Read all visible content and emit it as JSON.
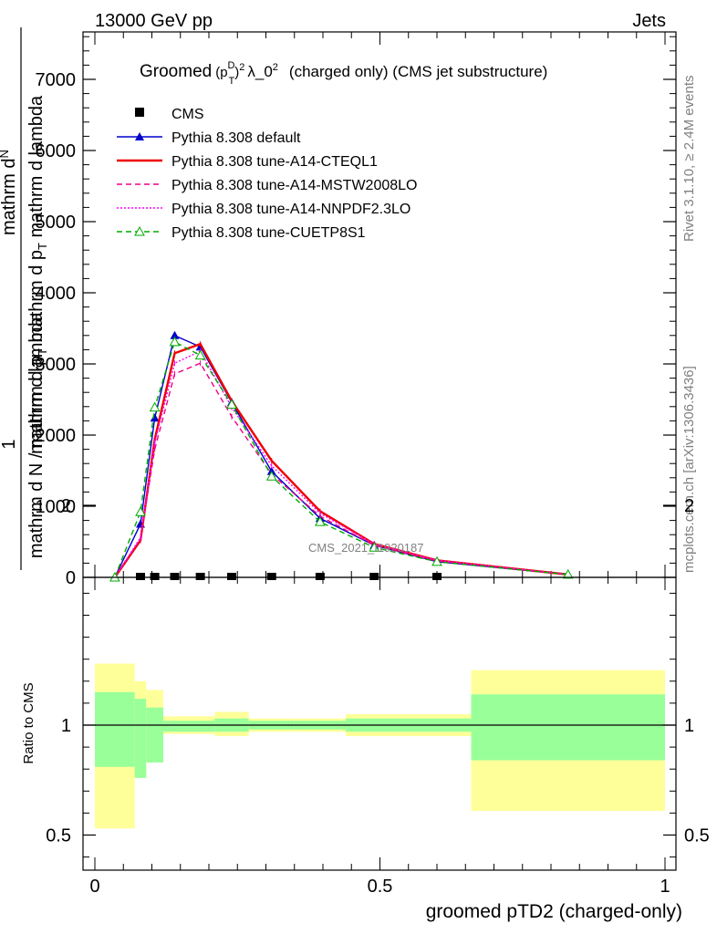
{
  "header": {
    "energy": "13000 GeV pp",
    "process": "Jets"
  },
  "side": {
    "rivet": "Rivet 3.1.10, ≥ 2.4M events",
    "mcplots": "mcplots.cern.ch [arXiv:1306.3436]"
  },
  "title": {
    "groomed": "Groomed",
    "p": "(p",
    "D": "D",
    "T": "T",
    "paren_sq": ")",
    "two": "2",
    "lambda": "λ_0",
    "two2": "2",
    "rest": "(charged only) (CMS jet substructure)"
  },
  "watermark": "CMS_2021_I1920187",
  "upper": {
    "ylabel_num_top": "mathrm d",
    "ylabel_N": "N",
    "ylabel_num_bot": "mathrm d p",
    "ylabel_num_bot2": "T",
    "ylabel_num_bot3": " mathrm d lambda",
    "ylabel_one": "1",
    "ylabel_den": "mathrm d N / mathrm d p",
    "ylabel_den_T": "T"
  },
  "ratio_label": "Ratio to CMS",
  "xlabel": "groomed pTD2 (charged-only)",
  "chart_data": [
    {
      "type": "line",
      "panel": "main",
      "xlim": [
        0,
        1
      ],
      "ylim": [
        0,
        7600
      ],
      "y_ticks": [
        0,
        1000,
        2000,
        3000,
        4000,
        5000,
        6000,
        7000
      ],
      "y_tick_labels": [
        "0",
        "1000",
        "2000",
        "3000",
        "4000",
        "5000",
        "6000",
        "7000"
      ],
      "x_ticks": [
        0,
        0.5,
        1
      ],
      "x_tick_labels": [
        "0",
        "0.5",
        "1"
      ],
      "data_points": {
        "name": "CMS",
        "x": [
          0.035,
          0.08,
          0.105,
          0.14,
          0.185,
          0.24,
          0.31,
          0.395,
          0.49,
          0.6,
          0.83
        ],
        "y": [
          0,
          0,
          0,
          0,
          0,
          0,
          0,
          0,
          0,
          0,
          0
        ]
      },
      "x": [
        0.035,
        0.08,
        0.105,
        0.14,
        0.185,
        0.24,
        0.31,
        0.395,
        0.49,
        0.6,
        0.83
      ],
      "series": [
        {
          "name": "Pythia 8.308 default",
          "color": "#0000cc",
          "style": "solid",
          "marker": "triangle-filled",
          "values": [
            0,
            750,
            2240,
            3400,
            3240,
            2460,
            1490,
            830,
            450,
            220,
            40
          ]
        },
        {
          "name": "Pythia 8.308 tune-A14-CTEQL1",
          "color": "#ee0000",
          "style": "solid-thick",
          "marker": "none",
          "values": [
            0,
            520,
            1940,
            3150,
            3280,
            2480,
            1640,
            930,
            470,
            240,
            40
          ]
        },
        {
          "name": "Pythia 8.308 tune-A14-MSTW2008LO",
          "color": "#ee0088",
          "style": "dashed",
          "marker": "none",
          "values": [
            0,
            540,
            1800,
            2860,
            3010,
            2260,
            1450,
            860,
            450,
            230,
            40
          ]
        },
        {
          "name": "Pythia 8.308 tune-A14-NNPDF2.3LO",
          "color": "#ff00ff",
          "style": "dotted",
          "marker": "none",
          "values": [
            0,
            560,
            1890,
            3010,
            3180,
            2390,
            1570,
            900,
            470,
            240,
            40
          ]
        },
        {
          "name": "Pythia 8.308 tune-CUETP8S1",
          "color": "#00aa00",
          "style": "dashed",
          "marker": "triangle-open",
          "values": [
            0,
            920,
            2390,
            3310,
            3120,
            2430,
            1420,
            780,
            420,
            220,
            40
          ]
        }
      ]
    },
    {
      "type": "area",
      "panel": "ratio",
      "ylabel": "Ratio to CMS",
      "xlim": [
        0,
        1
      ],
      "ylim": [
        0.35,
        2.3
      ],
      "y_ticks": [
        0.5,
        1,
        2
      ],
      "y_tick_labels": [
        "0.5",
        "1",
        "2"
      ],
      "x_ticks": [
        0,
        0.5,
        1
      ],
      "x_tick_labels": [
        "0",
        "0.5",
        "1"
      ],
      "bins": [
        {
          "x0": 0.0,
          "x1": 0.07,
          "inner": [
            0.81,
            1.15
          ],
          "outer": [
            0.53,
            1.28
          ]
        },
        {
          "x0": 0.07,
          "x1": 0.09,
          "inner": [
            0.76,
            1.12
          ],
          "outer": [
            0.76,
            1.2
          ]
        },
        {
          "x0": 0.09,
          "x1": 0.12,
          "inner": [
            0.83,
            1.08
          ],
          "outer": [
            0.83,
            1.16
          ]
        },
        {
          "x0": 0.12,
          "x1": 0.16,
          "inner": [
            0.97,
            1.02
          ],
          "outer": [
            0.96,
            1.04
          ]
        },
        {
          "x0": 0.16,
          "x1": 0.21,
          "inner": [
            0.97,
            1.02
          ],
          "outer": [
            0.96,
            1.04
          ]
        },
        {
          "x0": 0.21,
          "x1": 0.27,
          "inner": [
            0.97,
            1.03
          ],
          "outer": [
            0.95,
            1.06
          ]
        },
        {
          "x0": 0.27,
          "x1": 0.35,
          "inner": [
            0.98,
            1.02
          ],
          "outer": [
            0.97,
            1.03
          ]
        },
        {
          "x0": 0.35,
          "x1": 0.44,
          "inner": [
            0.98,
            1.02
          ],
          "outer": [
            0.97,
            1.03
          ]
        },
        {
          "x0": 0.44,
          "x1": 0.54,
          "inner": [
            0.97,
            1.03
          ],
          "outer": [
            0.95,
            1.05
          ]
        },
        {
          "x0": 0.54,
          "x1": 0.66,
          "inner": [
            0.97,
            1.03
          ],
          "outer": [
            0.95,
            1.05
          ]
        },
        {
          "x0": 0.66,
          "x1": 1.0,
          "inner": [
            0.84,
            1.14
          ],
          "outer": [
            0.61,
            1.25
          ]
        }
      ],
      "reference_line": 1
    }
  ]
}
